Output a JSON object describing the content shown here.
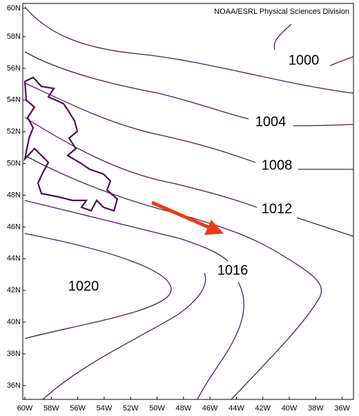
{
  "map": {
    "credit": "NOAA/ESRL Physical Sciences Division",
    "latitude_labels": [
      "60N",
      "58N",
      "56N",
      "54N",
      "52N",
      "50N",
      "48N",
      "46N",
      "44N",
      "42N",
      "40N",
      "38N",
      "36N"
    ],
    "longitude_labels": [
      "60W",
      "58W",
      "56W",
      "54W",
      "52W",
      "50W",
      "48W",
      "46W",
      "44W",
      "42W",
      "40W",
      "38W",
      "36W"
    ],
    "contour_labels": [
      1000,
      1004,
      1008,
      1012,
      1016,
      1020
    ]
  }
}
